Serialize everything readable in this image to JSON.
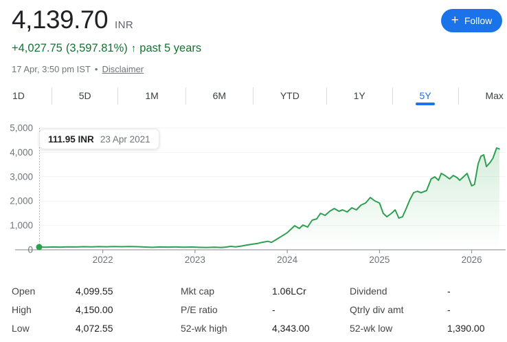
{
  "colors": {
    "accent_blue": "#1a73e8",
    "positive_green": "#137333",
    "chart_line_green": "#2da04f",
    "chart_fill_green": "#34a853",
    "axis_gray": "#80868b",
    "gridline_gray": "#f1f3f4",
    "axis_label_gray": "#70757a",
    "crosshair_gray": "#9aa0a6"
  },
  "header": {
    "price": "4,139.70",
    "currency": "INR",
    "change": {
      "amount": "+4,027.75",
      "percent": "(3,597.81%)",
      "arrow": "↑",
      "period": "past 5 years"
    },
    "timestamp": "17 Apr, 3:50 pm IST",
    "separator": "•",
    "disclaimer": "Disclaimer",
    "follow": {
      "plus": "+",
      "label": "Follow"
    }
  },
  "tabs": [
    {
      "label": "1D",
      "active": false
    },
    {
      "label": "5D",
      "active": false
    },
    {
      "label": "1M",
      "active": false
    },
    {
      "label": "6M",
      "active": false
    },
    {
      "label": "YTD",
      "active": false
    },
    {
      "label": "1Y",
      "active": false
    },
    {
      "label": "5Y",
      "active": true
    },
    {
      "label": "Max",
      "active": false
    }
  ],
  "tooltip": {
    "value": "111.95 INR",
    "date": "23 Apr 2021"
  },
  "chart_data": {
    "type": "area",
    "title": "",
    "xlabel": "",
    "ylabel": "",
    "ylim": [
      0,
      5000
    ],
    "xlim": [
      2021.31,
      2026.33
    ],
    "grid": true,
    "y_ticks": [
      {
        "value": 0,
        "label": "0"
      },
      {
        "value": 1000,
        "label": "1,000"
      },
      {
        "value": 2000,
        "label": "2,000"
      },
      {
        "value": 3000,
        "label": "3,000"
      },
      {
        "value": 4000,
        "label": "4,000"
      },
      {
        "value": 5000,
        "label": "5,000"
      }
    ],
    "x_ticks": [
      {
        "value": 2022,
        "label": "2022"
      },
      {
        "value": 2023,
        "label": "2023"
      },
      {
        "value": 2024,
        "label": "2024"
      },
      {
        "value": 2025,
        "label": "2025"
      },
      {
        "value": 2026,
        "label": "2026"
      }
    ],
    "hover_point": {
      "x": 2021.31,
      "value": 111.95,
      "date": "23 Apr 2021"
    },
    "series": [
      {
        "name": "price_inr",
        "points": [
          [
            2021.31,
            112
          ],
          [
            2021.38,
            106
          ],
          [
            2021.46,
            116
          ],
          [
            2021.54,
            111
          ],
          [
            2021.62,
            121
          ],
          [
            2021.71,
            117
          ],
          [
            2021.79,
            126
          ],
          [
            2021.88,
            122
          ],
          [
            2021.96,
            129
          ],
          [
            2022.04,
            125
          ],
          [
            2022.12,
            133
          ],
          [
            2022.21,
            127
          ],
          [
            2022.29,
            137
          ],
          [
            2022.38,
            128
          ],
          [
            2022.46,
            112
          ],
          [
            2022.54,
            102
          ],
          [
            2022.62,
            116
          ],
          [
            2022.71,
            109
          ],
          [
            2022.79,
            117
          ],
          [
            2022.88,
            108
          ],
          [
            2022.96,
            113
          ],
          [
            2023.04,
            103
          ],
          [
            2023.12,
            96
          ],
          [
            2023.21,
            104
          ],
          [
            2023.29,
            97
          ],
          [
            2023.33,
            110
          ],
          [
            2023.39,
            142
          ],
          [
            2023.44,
            118
          ],
          [
            2023.5,
            152
          ],
          [
            2023.56,
            196
          ],
          [
            2023.62,
            228
          ],
          [
            2023.68,
            262
          ],
          [
            2023.73,
            308
          ],
          [
            2023.79,
            347
          ],
          [
            2023.83,
            305
          ],
          [
            2023.88,
            420
          ],
          [
            2023.94,
            560
          ],
          [
            2024.0,
            700
          ],
          [
            2024.04,
            846
          ],
          [
            2024.08,
            988
          ],
          [
            2024.13,
            875
          ],
          [
            2024.17,
            1017
          ],
          [
            2024.22,
            932
          ],
          [
            2024.27,
            1215
          ],
          [
            2024.32,
            1271
          ],
          [
            2024.36,
            1497
          ],
          [
            2024.41,
            1412
          ],
          [
            2024.46,
            1582
          ],
          [
            2024.51,
            1695
          ],
          [
            2024.56,
            1582
          ],
          [
            2024.6,
            1638
          ],
          [
            2024.65,
            1554
          ],
          [
            2024.7,
            1723
          ],
          [
            2024.75,
            1638
          ],
          [
            2024.8,
            1836
          ],
          [
            2024.85,
            1921
          ],
          [
            2024.9,
            2147
          ],
          [
            2024.95,
            2006
          ],
          [
            2025.0,
            1921
          ],
          [
            2025.04,
            1497
          ],
          [
            2025.08,
            1356
          ],
          [
            2025.13,
            1497
          ],
          [
            2025.17,
            1638
          ],
          [
            2025.21,
            1300
          ],
          [
            2025.25,
            1356
          ],
          [
            2025.29,
            1695
          ],
          [
            2025.33,
            2063
          ],
          [
            2025.37,
            2345
          ],
          [
            2025.41,
            2401
          ],
          [
            2025.45,
            2345
          ],
          [
            2025.51,
            2430
          ],
          [
            2025.56,
            2910
          ],
          [
            2025.6,
            2995
          ],
          [
            2025.64,
            2853
          ],
          [
            2025.67,
            3136
          ],
          [
            2025.71,
            3051
          ],
          [
            2025.76,
            2910
          ],
          [
            2025.8,
            3051
          ],
          [
            2025.84,
            2966
          ],
          [
            2025.87,
            2853
          ],
          [
            2025.91,
            2995
          ],
          [
            2025.95,
            3136
          ],
          [
            2026.0,
            2627
          ],
          [
            2026.03,
            2684
          ],
          [
            2026.07,
            3531
          ],
          [
            2026.1,
            3842
          ],
          [
            2026.13,
            3899
          ],
          [
            2026.16,
            3418
          ],
          [
            2026.2,
            3590
          ],
          [
            2026.23,
            3757
          ],
          [
            2026.27,
            4181
          ],
          [
            2026.3,
            4139.7
          ]
        ]
      }
    ]
  },
  "stats": {
    "columns": [
      {
        "rows": [
          {
            "label": "Open",
            "value": "4,099.55"
          },
          {
            "label": "High",
            "value": "4,150.00"
          },
          {
            "label": "Low",
            "value": "4,072.55"
          }
        ]
      },
      {
        "rows": [
          {
            "label": "Mkt cap",
            "value": "1.06LCr"
          },
          {
            "label": "P/E ratio",
            "value": "-"
          },
          {
            "label": "52-wk high",
            "value": "4,343.00"
          }
        ]
      },
      {
        "rows": [
          {
            "label": "Dividend",
            "value": "-"
          },
          {
            "label": "Qtrly div amt",
            "value": "-"
          },
          {
            "label": "52-wk low",
            "value": "1,390.00"
          }
        ]
      }
    ]
  }
}
